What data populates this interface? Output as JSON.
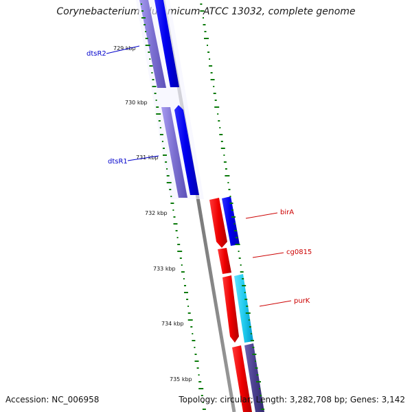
{
  "title": "Corynebacterium glutamicum ATCC 13032, complete genome",
  "footer": {
    "accession": "Accession: NC_006958",
    "stats": "Topology: circular; Length: 3,282,708 bp; Genes: 3,142"
  },
  "ticks": [
    "729 kbp",
    "730 kbp",
    "731 kbp",
    "732 kbp",
    "733 kbp",
    "734 kbp",
    "735 kbp"
  ],
  "genes": [
    {
      "name": "dtsR2",
      "color": "#0000cc"
    },
    {
      "name": "dtsR1",
      "color": "#0000cc"
    },
    {
      "name": "birA",
      "color": "#cc0000"
    },
    {
      "name": "cg0815",
      "color": "#cc0000"
    },
    {
      "name": "purK",
      "color": "#cc0000"
    }
  ],
  "colors": {
    "backbone": "#7a7a7a",
    "blue_feature": "#0000ee",
    "blue_shadow": "#7b6fd0",
    "red_feature": "#ee0000",
    "cyan_feature": "#22ccee",
    "gc_skew_marks": "#0a7a0a"
  }
}
